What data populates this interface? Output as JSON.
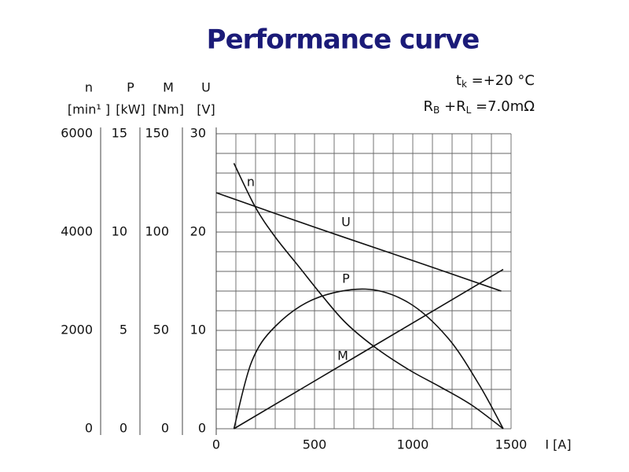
{
  "chart_data": {
    "type": "line",
    "title": "Performance curve",
    "axes": [
      {
        "name": "n",
        "unit": "[min¹ ]",
        "lim": [
          0,
          6000
        ],
        "ticks": [
          0,
          2000,
          4000,
          6000
        ]
      },
      {
        "name": "P",
        "unit": "[kW]",
        "lim": [
          0,
          15
        ],
        "ticks": [
          0,
          5,
          10,
          15
        ]
      },
      {
        "name": "M",
        "unit": "[Nm]",
        "lim": [
          0,
          150
        ],
        "ticks": [
          0,
          50,
          100,
          150
        ]
      },
      {
        "name": "U",
        "unit": "[V]",
        "lim": [
          0,
          30
        ],
        "ticks": [
          0,
          10,
          20,
          30
        ]
      }
    ],
    "xlabel": "I [A]",
    "xlim": [
      0,
      1500
    ],
    "xticks": [
      0,
      500,
      1000,
      1500
    ],
    "grid": true,
    "annotations": [
      {
        "parts": [
          {
            "text": "t"
          },
          {
            "text": "k",
            "sub": true
          },
          {
            "text": " =+20  °C"
          }
        ]
      },
      {
        "parts": [
          {
            "text": "R"
          },
          {
            "text": "B",
            "sub": true
          },
          {
            "text": " +R"
          },
          {
            "text": "L",
            "sub": true
          },
          {
            "text": " =7.0mΩ"
          }
        ]
      }
    ],
    "series": [
      {
        "name": "n",
        "axis": 0,
        "color": "#111111",
        "x": [
          90,
          200,
          300,
          420,
          540,
          660,
          810,
          980,
          1140,
          1300,
          1460
        ],
        "values": [
          5400,
          4500,
          3900,
          3300,
          2700,
          2150,
          1650,
          1200,
          850,
          480,
          0
        ]
      },
      {
        "name": "U",
        "axis": 3,
        "color": "#111111",
        "x": [
          0,
          500,
          1000,
          1450
        ],
        "values": [
          24,
          20.5,
          17.1,
          14
        ]
      },
      {
        "name": "P",
        "axis": 1,
        "color": "#111111",
        "x": [
          90,
          180,
          300,
          500,
          760,
          980,
          1180,
          1340,
          1460
        ],
        "values": [
          0,
          3.4,
          5.2,
          6.6,
          7.1,
          6.4,
          4.6,
          2.2,
          0
        ]
      },
      {
        "name": "M",
        "axis": 2,
        "color": "#111111",
        "x": [
          90,
          1460
        ],
        "values": [
          0,
          81
        ]
      }
    ]
  }
}
